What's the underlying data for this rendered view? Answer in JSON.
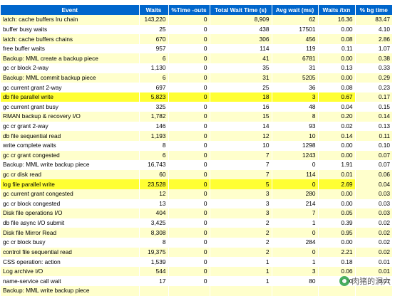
{
  "table": {
    "headers": [
      "Event",
      "Waits",
      "%Time -outs",
      "Total Wait Time (s)",
      "Avg wait (ms)",
      "Waits /txn",
      "% bg time"
    ],
    "rows": [
      [
        "latch: cache buffers lru chain",
        "143,220",
        "0",
        "8,909",
        "62",
        "16.36",
        "83.47"
      ],
      [
        "buffer busy waits",
        "25",
        "0",
        "438",
        "17501",
        "0.00",
        "4.10"
      ],
      [
        "latch: cache buffers chains",
        "670",
        "0",
        "306",
        "456",
        "0.08",
        "2.86"
      ],
      [
        "free buffer waits",
        "957",
        "0",
        "114",
        "119",
        "0.11",
        "1.07"
      ],
      [
        "Backup: MML create a backup piece",
        "6",
        "0",
        "41",
        "6781",
        "0.00",
        "0.38"
      ],
      [
        "gc cr block 2-way",
        "1,130",
        "0",
        "35",
        "31",
        "0.13",
        "0.33"
      ],
      [
        "Backup: MML commit backup piece",
        "6",
        "0",
        "31",
        "5205",
        "0.00",
        "0.29"
      ],
      [
        "gc current grant 2-way",
        "697",
        "0",
        "25",
        "36",
        "0.08",
        "0.23"
      ],
      [
        "db file parallel write",
        "5,823",
        "0",
        "18",
        "3",
        "0.67",
        "0.17"
      ],
      [
        "gc current grant busy",
        "325",
        "0",
        "16",
        "48",
        "0.04",
        "0.15"
      ],
      [
        "RMAN backup & recovery I/O",
        "1,782",
        "0",
        "15",
        "8",
        "0.20",
        "0.14"
      ],
      [
        "gc cr grant 2-way",
        "146",
        "0",
        "14",
        "93",
        "0.02",
        "0.13"
      ],
      [
        "db file sequential read",
        "1,193",
        "0",
        "12",
        "10",
        "0.14",
        "0.11"
      ],
      [
        "write complete waits",
        "8",
        "0",
        "10",
        "1298",
        "0.00",
        "0.10"
      ],
      [
        "gc cr grant congested",
        "6",
        "0",
        "7",
        "1243",
        "0.00",
        "0.07"
      ],
      [
        "Backup: MML write backup piece",
        "16,743",
        "0",
        "7",
        "0",
        "1.91",
        "0.07"
      ],
      [
        "gc cr disk read",
        "60",
        "0",
        "7",
        "114",
        "0.01",
        "0.06"
      ],
      [
        "log file parallel write",
        "23,528",
        "0",
        "5",
        "0",
        "2.69",
        "0.04"
      ],
      [
        "gc current grant congested",
        "12",
        "0",
        "3",
        "280",
        "0.00",
        "0.03"
      ],
      [
        "gc cr block congested",
        "13",
        "0",
        "3",
        "214",
        "0.00",
        "0.03"
      ],
      [
        "Disk file operations I/O",
        "404",
        "0",
        "3",
        "7",
        "0.05",
        "0.03"
      ],
      [
        "db file async I/O submit",
        "3,425",
        "0",
        "2",
        "1",
        "0.39",
        "0.02"
      ],
      [
        "Disk file Mirror Read",
        "8,308",
        "0",
        "2",
        "0",
        "0.95",
        "0.02"
      ],
      [
        "gc cr block busy",
        "8",
        "0",
        "2",
        "284",
        "0.00",
        "0.02"
      ],
      [
        "control file sequential read",
        "19,375",
        "0",
        "2",
        "0",
        "2.21",
        "0.02"
      ],
      [
        "CSS operation: action",
        "1,539",
        "0",
        "1",
        "1",
        "0.18",
        "0.01"
      ],
      [
        "Log archive I/O",
        "544",
        "0",
        "1",
        "3",
        "0.06",
        "0.01"
      ],
      [
        "name-service call wait",
        "17",
        "0",
        "1",
        "80",
        "0.00",
        "0.01"
      ],
      [
        "Backup: MML write backup piece",
        "",
        "",
        "",
        "",
        "",
        ""
      ]
    ],
    "highlighted_rows": [
      8,
      17
    ]
  },
  "watermark": {
    "text": "肉猪的洞穴",
    "icon": "wechat-logo-icon"
  },
  "colors": {
    "header_bg": "#0066cc",
    "header_text": "#ffffff",
    "row_alt": "#ffffcc",
    "row_plain": "#ffffff",
    "highlight": "#ffff33"
  }
}
